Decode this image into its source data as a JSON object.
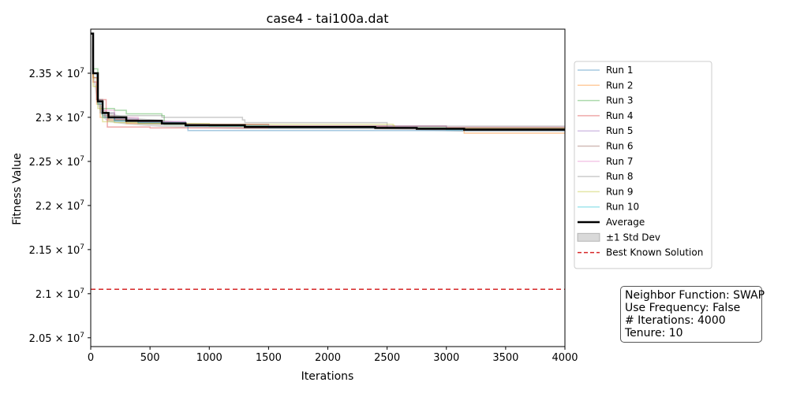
{
  "chart_data": {
    "type": "line",
    "title": "case4 - tai100a.dat",
    "xlabel": "Iterations",
    "ylabel": "Fitness Value",
    "xlim": [
      0,
      4000
    ],
    "ylim": [
      20400000,
      24000000
    ],
    "x_ticks": [
      0,
      500,
      1000,
      1500,
      2000,
      2500,
      3000,
      3500,
      4000
    ],
    "y_ticks": [
      {
        "value": 20500000,
        "mantissa": "2.05",
        "exp": "7"
      },
      {
        "value": 21000000,
        "mantissa": "2.1",
        "exp": "7"
      },
      {
        "value": 21500000,
        "mantissa": "2.15",
        "exp": "7"
      },
      {
        "value": 22000000,
        "mantissa": "2.2",
        "exp": "7"
      },
      {
        "value": 22500000,
        "mantissa": "2.25",
        "exp": "7"
      },
      {
        "value": 23000000,
        "mantissa": "2.3",
        "exp": "7"
      },
      {
        "value": 23500000,
        "mantissa": "2.35",
        "exp": "7"
      }
    ],
    "grid": false,
    "legend_position": "outside-right",
    "series": [
      {
        "name": "Run 1",
        "color": "#1f77b4",
        "x": [
          0,
          20,
          50,
          80,
          120,
          200,
          400,
          800,
          820,
          1500,
          4000
        ],
        "y": [
          23950000,
          23500000,
          23200000,
          23050000,
          23000000,
          22960000,
          22930000,
          22900000,
          22850000,
          22850000,
          22850000
        ]
      },
      {
        "name": "Run 2",
        "color": "#ff7f0e",
        "x": [
          0,
          20,
          50,
          80,
          150,
          300,
          800,
          1500,
          2500,
          3150,
          4000
        ],
        "y": [
          23950000,
          23450000,
          23150000,
          23000000,
          22970000,
          22930000,
          22920000,
          22900000,
          22880000,
          22820000,
          22820000
        ]
      },
      {
        "name": "Run 3",
        "color": "#2ca02c",
        "x": [
          0,
          20,
          60,
          100,
          200,
          300,
          600,
          620,
          1000,
          2500,
          4000
        ],
        "y": [
          23950000,
          23550000,
          23200000,
          23100000,
          23080000,
          23040000,
          23020000,
          22920000,
          22900000,
          22880000,
          22880000
        ]
      },
      {
        "name": "Run 4",
        "color": "#d62728",
        "x": [
          0,
          20,
          50,
          80,
          130,
          140,
          500,
          1500,
          4000
        ],
        "y": [
          23950000,
          23400000,
          23200000,
          23200000,
          23050000,
          22890000,
          22880000,
          22880000,
          22880000
        ]
      },
      {
        "name": "Run 5",
        "color": "#9467bd",
        "x": [
          0,
          20,
          60,
          100,
          200,
          400,
          800,
          1500,
          3000,
          4000
        ],
        "y": [
          23950000,
          23500000,
          23180000,
          23050000,
          22980000,
          22950000,
          22920000,
          22900000,
          22880000,
          22880000
        ]
      },
      {
        "name": "Run 6",
        "color": "#8c564b",
        "x": [
          0,
          20,
          60,
          100,
          200,
          400,
          800,
          1500,
          3000,
          4000
        ],
        "y": [
          23950000,
          23450000,
          23150000,
          23020000,
          22970000,
          22940000,
          22910000,
          22900000,
          22870000,
          22870000
        ]
      },
      {
        "name": "Run 7",
        "color": "#e377c2",
        "x": [
          0,
          20,
          60,
          100,
          200,
          400,
          800,
          1500,
          3000,
          4000
        ],
        "y": [
          23950000,
          23500000,
          23200000,
          23080000,
          23000000,
          22950000,
          22920000,
          22900000,
          22890000,
          22890000
        ]
      },
      {
        "name": "Run 8",
        "color": "#7f7f7f",
        "x": [
          0,
          20,
          60,
          100,
          200,
          600,
          1280,
          1300,
          2500,
          4000
        ],
        "y": [
          23950000,
          23500000,
          23200000,
          23050000,
          23020000,
          23000000,
          22970000,
          22940000,
          22900000,
          22900000
        ]
      },
      {
        "name": "Run 9",
        "color": "#bcbd22",
        "x": [
          0,
          20,
          60,
          100,
          200,
          400,
          1000,
          2550,
          2560,
          4000
        ],
        "y": [
          23950000,
          23350000,
          23100000,
          22950000,
          22940000,
          22930000,
          22920000,
          22910000,
          22880000,
          22880000
        ]
      },
      {
        "name": "Run 10",
        "color": "#17becf",
        "x": [
          0,
          20,
          60,
          100,
          200,
          400,
          800,
          1500,
          3000,
          4000
        ],
        "y": [
          23950000,
          23500000,
          23150000,
          23000000,
          22960000,
          22940000,
          22900000,
          22880000,
          22860000,
          22860000
        ]
      },
      {
        "name": "Average",
        "color": "#000000",
        "x": [
          0,
          20,
          60,
          100,
          150,
          300,
          600,
          800,
          1300,
          2400,
          2750,
          3150,
          4000
        ],
        "y": [
          23950000,
          23500000,
          23180000,
          23050000,
          23000000,
          22960000,
          22930000,
          22910000,
          22890000,
          22880000,
          22870000,
          22860000,
          22860000
        ]
      }
    ],
    "std_dev": {
      "name": "±1 Std Dev",
      "color": "#808080"
    },
    "best_known": {
      "name": "Best Known Solution",
      "value": 21050000,
      "color": "#d62728"
    }
  },
  "info_box": {
    "line1": "Neighbor Function: SWAP",
    "line2": "Use Frequency: False",
    "line3": "# Iterations: 4000",
    "line4": "Tenure: 10"
  }
}
